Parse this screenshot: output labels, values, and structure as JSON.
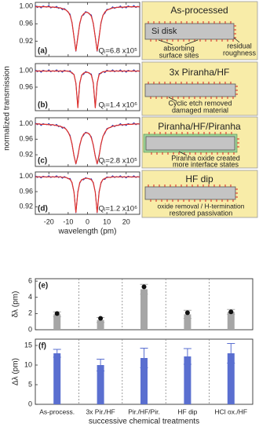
{
  "chart_data": [
    {
      "type": "line",
      "panel": "(a)",
      "annotation": "Qᵢ=6.8 x10⁵",
      "ylabel": "normalized transmission",
      "x": [
        -27,
        -26,
        -25,
        -24,
        -23,
        -22,
        -21,
        -20,
        -19,
        -18,
        -17,
        -16,
        -15,
        -14,
        -13,
        -12,
        -11,
        -10,
        -9,
        -8,
        -7,
        -6,
        -5,
        -4,
        -3,
        -2,
        -1,
        0,
        1,
        2,
        3,
        4,
        5,
        6,
        7,
        8,
        9,
        10,
        11,
        12,
        13,
        14,
        15,
        16,
        17,
        18,
        19,
        20,
        21,
        22,
        23,
        24,
        25,
        26,
        27
      ],
      "series": [
        {
          "color": "#2b3bb8",
          "values": [
            1.002,
            0.997,
            1.0,
            0.996,
            1.001,
            0.999,
            0.998,
            1.002,
            0.996,
            0.999,
            0.997,
            1.0,
            0.995,
            0.997,
            0.992,
            0.995,
            0.991,
            0.986,
            0.982,
            0.961,
            0.93,
            0.897,
            0.932,
            0.959,
            0.978,
            0.98,
            0.988,
            0.986,
            0.982,
            0.98,
            0.959,
            0.93,
            0.897,
            0.932,
            0.961,
            0.98,
            0.984,
            0.993,
            0.993,
            0.994,
            0.999,
            0.995,
            0.998,
            0.997,
            1.001,
            0.996,
            0.999,
            0.996,
            1.001,
            0.999,
            0.998,
            1.002,
            0.997,
            1.0,
            0.998
          ]
        },
        {
          "color": "#e0302a",
          "values": [
            0.999,
            0.999,
            0.999,
            0.999,
            0.999,
            0.999,
            0.999,
            0.999,
            0.998,
            0.998,
            0.998,
            0.997,
            0.997,
            0.996,
            0.995,
            0.993,
            0.991,
            0.987,
            0.979,
            0.963,
            0.929,
            0.898,
            0.929,
            0.961,
            0.977,
            0.983,
            0.986,
            0.986,
            0.983,
            0.977,
            0.961,
            0.929,
            0.898,
            0.929,
            0.963,
            0.979,
            0.987,
            0.991,
            0.993,
            0.995,
            0.996,
            0.997,
            0.997,
            0.998,
            0.998,
            0.998,
            0.998,
            0.999,
            0.999,
            0.999,
            0.999,
            0.999,
            0.999,
            0.999,
            0.999
          ]
        }
      ],
      "xlim": [
        -27,
        27
      ],
      "ylim": [
        0.885,
        1.009
      ],
      "yticks": [
        {
          "value": 1,
          "label": "1.00"
        },
        0.96,
        0.92
      ],
      "inset": {
        "title": "As-processed",
        "labels": [
          "Si disk",
          "absorbing",
          "surface sites",
          "residual",
          "roughness"
        ]
      }
    },
    {
      "type": "line",
      "panel": "(b)",
      "annotation": "Qᵢ=1.4 x10⁶",
      "x": [
        -27,
        -26,
        -25,
        -24,
        -23,
        -22,
        -21,
        -20,
        -19,
        -18,
        -17,
        -16,
        -15,
        -14,
        -13,
        -12,
        -11,
        -10,
        -9,
        -8,
        -7,
        -6,
        -5,
        -4,
        -3,
        -2,
        -1,
        0,
        1,
        2,
        3,
        4,
        5,
        6,
        7,
        8,
        9,
        10,
        11,
        12,
        13,
        14,
        15,
        16,
        17,
        18,
        19,
        20,
        21,
        22,
        23,
        24,
        25,
        26,
        27
      ],
      "series": [
        {
          "color": "#2b3bb8",
          "values": [
            1.002,
            0.997,
            1.0,
            0.996,
            1.001,
            0.999,
            0.998,
            1.002,
            0.997,
            1.0,
            0.998,
            1.002,
            0.997,
            1.0,
            0.996,
            1.001,
            0.999,
            0.998,
            1.0,
            0.993,
            0.991,
            0.969,
            0.913,
            0.968,
            0.99,
            0.991,
            0.998,
            0.996,
            0.993,
            0.992,
            0.968,
            0.911,
            0.969,
            0.993,
            0.993,
            0.998,
            0.995,
            1.001,
            0.999,
            0.998,
            1.002,
            0.997,
            1.0,
            0.998,
            1.002,
            0.997,
            1.0,
            0.996,
            1.001,
            0.999,
            0.998,
            1.002,
            0.997,
            1.0,
            0.998
          ]
        },
        {
          "color": "#e0302a",
          "values": [
            0.999,
            0.999,
            0.999,
            0.999,
            0.999,
            0.999,
            0.999,
            0.999,
            0.999,
            0.999,
            0.999,
            0.999,
            0.999,
            0.999,
            0.999,
            0.999,
            0.999,
            0.999,
            0.997,
            0.995,
            0.99,
            0.97,
            0.91,
            0.97,
            0.989,
            0.994,
            0.996,
            0.996,
            0.994,
            0.989,
            0.97,
            0.91,
            0.97,
            0.99,
            0.995,
            0.997,
            0.998,
            0.999,
            0.999,
            0.999,
            0.999,
            0.999,
            0.999,
            0.999,
            0.999,
            0.999,
            0.999,
            0.999,
            0.999,
            0.999,
            0.999,
            0.999,
            0.999,
            0.999,
            0.999
          ]
        }
      ],
      "xlim": [
        -27,
        27
      ],
      "ylim": [
        0.903,
        1.017
      ],
      "yticks": [
        {
          "value": 1,
          "label": "1.00"
        },
        0.96
      ],
      "inset": {
        "title": "3x Piranha/HF",
        "labels": [
          "Cyclic etch removed",
          "damaged material"
        ]
      }
    },
    {
      "type": "line",
      "panel": "(c)",
      "annotation": "Qᵢ=2.8 x10⁵",
      "x": [
        -27,
        -26,
        -25,
        -24,
        -23,
        -22,
        -21,
        -20,
        -19,
        -18,
        -17,
        -16,
        -15,
        -14,
        -13,
        -12,
        -11,
        -10,
        -9,
        -8,
        -7,
        -6,
        -5,
        -4,
        -3,
        -2,
        -1,
        0,
        1,
        2,
        3,
        4,
        5,
        6,
        7,
        8,
        9,
        10,
        11,
        12,
        13,
        14,
        15,
        16,
        17,
        18,
        19,
        20,
        21,
        22,
        23,
        24,
        25,
        26,
        27
      ],
      "series": [
        {
          "color": "#2b3bb8",
          "values": [
            1.002,
            0.997,
            1.0,
            0.995,
            1.0,
            0.998,
            0.997,
            1.0,
            0.995,
            0.998,
            0.995,
            0.998,
            0.992,
            0.994,
            0.988,
            0.991,
            0.985,
            0.977,
            0.97,
            0.946,
            0.918,
            0.896,
            0.919,
            0.943,
            0.964,
            0.97,
            0.978,
            0.976,
            0.972,
            0.966,
            0.943,
            0.917,
            0.896,
            0.92,
            0.946,
            0.968,
            0.975,
            0.987,
            0.989,
            0.99,
            0.996,
            0.992,
            0.996,
            0.995,
            1.0,
            0.995,
            0.998,
            0.995,
            1.0,
            0.998,
            0.998,
            1.002,
            0.997,
            1.0,
            0.998
          ]
        },
        {
          "color": "#e0302a",
          "values": [
            0.999,
            0.999,
            0.999,
            0.998,
            0.998,
            0.998,
            0.998,
            0.997,
            0.997,
            0.997,
            0.996,
            0.995,
            0.994,
            0.993,
            0.991,
            0.989,
            0.985,
            0.978,
            0.967,
            0.948,
            0.917,
            0.897,
            0.916,
            0.945,
            0.963,
            0.973,
            0.976,
            0.976,
            0.973,
            0.963,
            0.945,
            0.916,
            0.897,
            0.917,
            0.948,
            0.967,
            0.978,
            0.985,
            0.989,
            0.991,
            0.993,
            0.994,
            0.995,
            0.996,
            0.997,
            0.997,
            0.997,
            0.998,
            0.998,
            0.998,
            0.998,
            0.999,
            0.999,
            0.999,
            0.999
          ]
        }
      ],
      "xlim": [
        -27,
        27
      ],
      "ylim": [
        0.89,
        1.015
      ],
      "yticks": [
        {
          "value": 1,
          "label": "1.00"
        },
        0.96,
        0.92
      ],
      "inset": {
        "title": "Piranha/HF/Piranha",
        "labels": [
          "Piranha oxide created",
          "more interface states"
        ]
      }
    },
    {
      "type": "line",
      "panel": "(d)",
      "annotation": "Qᵢ=1.2 x10⁶",
      "xlabel": "wavelength (pm)",
      "x": [
        -27,
        -26,
        -25,
        -24,
        -23,
        -22,
        -21,
        -20,
        -19,
        -18,
        -17,
        -16,
        -15,
        -14,
        -13,
        -12,
        -11,
        -10,
        -9,
        -8,
        -7,
        -6,
        -5,
        -4,
        -3,
        -2,
        -1,
        0,
        1,
        2,
        3,
        4,
        5,
        6,
        7,
        8,
        9,
        10,
        11,
        12,
        13,
        14,
        15,
        16,
        17,
        18,
        19,
        20,
        21,
        22,
        23,
        24,
        25,
        26,
        27
      ],
      "series": [
        {
          "color": "#2b3bb8",
          "values": [
            1.002,
            0.997,
            1.0,
            0.996,
            1.001,
            0.999,
            0.998,
            1.002,
            0.997,
            1.0,
            0.998,
            1.002,
            0.997,
            1.0,
            0.995,
            1.0,
            0.997,
            0.994,
            0.995,
            0.982,
            0.959,
            0.904,
            0.961,
            0.982,
            0.992,
            0.991,
            0.997,
            0.995,
            0.993,
            0.994,
            0.982,
            0.959,
            0.904,
            0.961,
            0.982,
            0.993,
            0.992,
            0.999,
            0.998,
            0.997,
            1.002,
            0.997,
            1.0,
            0.998,
            1.002,
            0.997,
            1.0,
            0.996,
            1.001,
            0.999,
            0.998,
            1.002,
            0.997,
            1.0,
            0.998
          ]
        },
        {
          "color": "#e0302a",
          "values": [
            0.999,
            0.999,
            0.999,
            0.999,
            0.999,
            0.999,
            0.999,
            0.999,
            0.999,
            0.999,
            0.999,
            0.999,
            0.999,
            0.999,
            0.998,
            0.998,
            0.997,
            0.995,
            0.992,
            0.984,
            0.958,
            0.905,
            0.958,
            0.984,
            0.991,
            0.994,
            0.995,
            0.995,
            0.994,
            0.991,
            0.984,
            0.958,
            0.905,
            0.958,
            0.984,
            0.992,
            0.995,
            0.997,
            0.998,
            0.998,
            0.999,
            0.999,
            0.999,
            0.999,
            0.999,
            0.999,
            0.999,
            0.999,
            0.999,
            0.999,
            0.999,
            0.999,
            0.999,
            0.999,
            0.999
          ]
        }
      ],
      "xlim": [
        -27,
        27
      ],
      "ylim": [
        0.9,
        1.012
      ],
      "yticks": [
        {
          "value": 1,
          "label": "1.00"
        },
        0.96,
        0.92
      ],
      "xticks": [
        -20,
        -10,
        0,
        10,
        20
      ],
      "inset": {
        "title": "HF dip",
        "labels": [
          "oxide removal / H-termination",
          "restored passivation"
        ]
      }
    },
    {
      "type": "bar",
      "panel": "(e)",
      "ylabel": "δλ (pm)",
      "series": [
        {
          "color": "#a6a6a6",
          "values": [
            1.9,
            1.2,
            5.0,
            1.9,
            2.2
          ],
          "errors": [
            0.3,
            0.3,
            0.6,
            0.5,
            0.3
          ]
        },
        {
          "color": "#111111",
          "marker": "circle",
          "values": [
            2.0,
            1.4,
            5.3,
            2.1,
            2.2
          ]
        }
      ],
      "ylim": [
        0,
        6.3
      ],
      "yticks": [
        0,
        2,
        4,
        6
      ]
    },
    {
      "type": "bar",
      "panel": "(f)",
      "ylabel": "Δλ (pm)",
      "xlabel": "successive chemical treatments",
      "categories": [
        "As-process.",
        "3x Pir./HF",
        "Pir./HF/Pir.",
        "HF dip",
        "HCl ox./HF"
      ],
      "series": [
        {
          "color": "#5a6fd0",
          "values": [
            13,
            10,
            11.8,
            12.2,
            13
          ],
          "errors": [
            1,
            1.5,
            2.5,
            2,
            2.5
          ]
        }
      ],
      "ylim": [
        0,
        16.6
      ],
      "yticks": [
        0,
        5,
        10,
        15
      ]
    }
  ]
}
